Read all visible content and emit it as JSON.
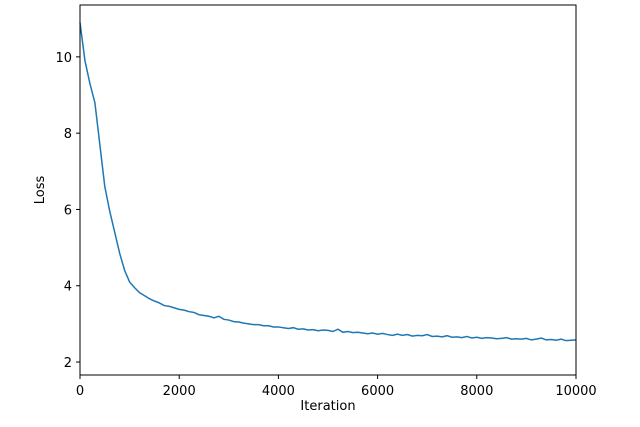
{
  "chart_data": {
    "type": "line",
    "x_label": "Iteration",
    "y_label": "Loss",
    "x": [
      0,
      100,
      200,
      300,
      400,
      500,
      600,
      700,
      800,
      900,
      1000,
      1100,
      1200,
      1300,
      1400,
      1500,
      1600,
      1700,
      1800,
      1900,
      2000,
      2100,
      2200,
      2300,
      2400,
      2500,
      2600,
      2700,
      2800,
      2900,
      3000,
      3100,
      3200,
      3300,
      3400,
      3500,
      3600,
      3700,
      3800,
      3900,
      4000,
      4100,
      4200,
      4300,
      4400,
      4500,
      4600,
      4700,
      4800,
      4900,
      5000,
      5100,
      5200,
      5300,
      5400,
      5500,
      5600,
      5700,
      5800,
      5900,
      6000,
      6100,
      6200,
      6300,
      6400,
      6500,
      6600,
      6700,
      6800,
      6900,
      7000,
      7100,
      7200,
      7300,
      7400,
      7500,
      7600,
      7700,
      7800,
      7900,
      8000,
      8100,
      8200,
      8300,
      8400,
      8500,
      8600,
      8700,
      8800,
      8900,
      9000,
      9100,
      9200,
      9300,
      9400,
      9500,
      9600,
      9700,
      9800,
      9900,
      10000
    ],
    "series": [
      {
        "name": "Loss",
        "color": "#1f77b4",
        "values": [
          10.9,
          9.9,
          9.3,
          8.8,
          7.7,
          6.6,
          5.95,
          5.4,
          4.85,
          4.4,
          4.1,
          3.95,
          3.82,
          3.74,
          3.66,
          3.6,
          3.55,
          3.48,
          3.46,
          3.42,
          3.38,
          3.36,
          3.32,
          3.3,
          3.24,
          3.22,
          3.2,
          3.16,
          3.2,
          3.12,
          3.1,
          3.06,
          3.05,
          3.02,
          3.0,
          2.98,
          2.98,
          2.95,
          2.95,
          2.92,
          2.92,
          2.9,
          2.88,
          2.9,
          2.86,
          2.87,
          2.84,
          2.85,
          2.82,
          2.84,
          2.83,
          2.8,
          2.86,
          2.78,
          2.8,
          2.77,
          2.78,
          2.76,
          2.74,
          2.76,
          2.73,
          2.75,
          2.72,
          2.7,
          2.73,
          2.7,
          2.72,
          2.68,
          2.7,
          2.69,
          2.72,
          2.67,
          2.68,
          2.66,
          2.69,
          2.65,
          2.66,
          2.64,
          2.67,
          2.63,
          2.65,
          2.62,
          2.64,
          2.63,
          2.61,
          2.62,
          2.64,
          2.6,
          2.61,
          2.6,
          2.62,
          2.58,
          2.6,
          2.63,
          2.58,
          2.59,
          2.57,
          2.6,
          2.56,
          2.57,
          2.58
        ]
      }
    ],
    "xlim": [
      0,
      10000
    ],
    "ylim": [
      1.66,
      11.36
    ],
    "xticks": [
      0,
      2000,
      4000,
      6000,
      8000,
      10000
    ],
    "yticks": [
      2,
      4,
      6,
      8,
      10
    ],
    "grid": false
  }
}
